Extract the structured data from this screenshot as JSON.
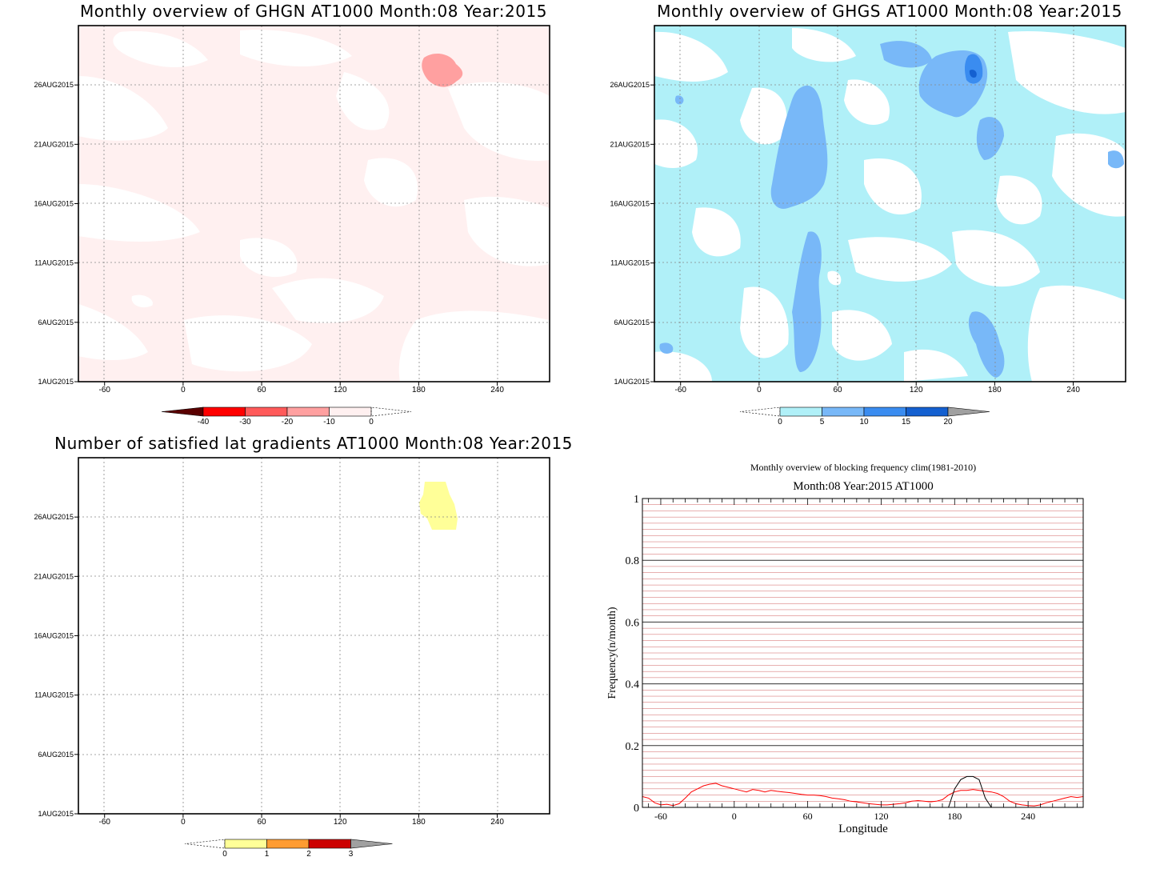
{
  "panels": [
    {
      "id": "ghgn",
      "title": "Monthly overview of GHGN AT1000 Month:08 Year:2015",
      "x_ticks": [
        "-60",
        "0",
        "60",
        "120",
        "180",
        "240"
      ],
      "y_ticks": [
        "1AUG2015",
        "6AUG2015",
        "11AUG2015",
        "16AUG2015",
        "21AUG2015",
        "26AUG2015"
      ],
      "colorbar": {
        "labels": [
          "-40",
          "-30",
          "-20",
          "-10",
          "0"
        ],
        "colors": [
          "#5a0000",
          "#ff0000",
          "#ff5a5a",
          "#ffa0a0",
          "#fff0f0"
        ]
      }
    },
    {
      "id": "ghgs",
      "title": "Monthly overview of GHGS AT1000 Month:08 Year:2015",
      "x_ticks": [
        "-60",
        "0",
        "60",
        "120",
        "180",
        "240"
      ],
      "y_ticks": [
        "1AUG2015",
        "6AUG2015",
        "11AUG2015",
        "16AUG2015",
        "21AUG2015",
        "26AUG2015"
      ],
      "colorbar": {
        "labels": [
          "0",
          "5",
          "10",
          "15",
          "20"
        ],
        "colors": [
          "#b0f0f8",
          "#78b8f8",
          "#3a8cf0",
          "#1460d0",
          "#a0a0a0"
        ]
      }
    },
    {
      "id": "lat",
      "title": "Number of satisfied lat gradients AT1000 Month:08 Year:2015",
      "x_ticks": [
        "-60",
        "0",
        "60",
        "120",
        "180",
        "240"
      ],
      "y_ticks": [
        "1AUG2015",
        "6AUG2015",
        "11AUG2015",
        "16AUG2015",
        "21AUG2015",
        "26AUG2015"
      ],
      "colorbar": {
        "labels": [
          "0",
          "1",
          "2",
          "3"
        ],
        "colors": [
          "#ffff98",
          "#ff9c32",
          "#cc0000",
          "#a0a0a0"
        ]
      }
    }
  ],
  "chart_data": {
    "type": "line",
    "title": "Monthly overview of blocking frequency clim(1981-2010)",
    "subtitle": "Month:08 Year:2015  AT1000",
    "xlabel": "Longitude",
    "ylabel": "Frequency(n/month)",
    "xlim": [
      -75,
      285
    ],
    "ylim": [
      0,
      1
    ],
    "x_ticks": [
      "-60",
      "0",
      "60",
      "120",
      "180",
      "240"
    ],
    "y_ticks": [
      "0",
      "0.2",
      "0.4",
      "0.6",
      "0.8",
      "1"
    ],
    "grid": true,
    "series": [
      {
        "color": "#ff0000",
        "x": [
          -75,
          -70,
          -65,
          -60,
          -55,
          -50,
          -45,
          -40,
          -35,
          -30,
          -25,
          -20,
          -15,
          -10,
          -5,
          0,
          5,
          10,
          15,
          20,
          25,
          30,
          35,
          40,
          45,
          50,
          55,
          60,
          65,
          70,
          75,
          80,
          85,
          90,
          95,
          100,
          105,
          110,
          115,
          120,
          125,
          130,
          135,
          140,
          145,
          150,
          155,
          160,
          165,
          170,
          175,
          180,
          185,
          190,
          195,
          200,
          205,
          210,
          215,
          220,
          225,
          230,
          235,
          240,
          245,
          250,
          255,
          260,
          265,
          270,
          275,
          280,
          285
        ],
        "values": [
          0.035,
          0.03,
          0.015,
          0.008,
          0.01,
          0.006,
          0.012,
          0.03,
          0.05,
          0.06,
          0.07,
          0.075,
          0.078,
          0.07,
          0.065,
          0.06,
          0.055,
          0.05,
          0.058,
          0.055,
          0.05,
          0.055,
          0.052,
          0.05,
          0.048,
          0.045,
          0.042,
          0.04,
          0.04,
          0.038,
          0.035,
          0.03,
          0.028,
          0.025,
          0.02,
          0.018,
          0.015,
          0.012,
          0.01,
          0.008,
          0.008,
          0.01,
          0.012,
          0.015,
          0.02,
          0.022,
          0.02,
          0.018,
          0.02,
          0.025,
          0.04,
          0.05,
          0.055,
          0.055,
          0.058,
          0.055,
          0.052,
          0.05,
          0.045,
          0.035,
          0.02,
          0.012,
          0.008,
          0.006,
          0.005,
          0.008,
          0.015,
          0.02,
          0.025,
          0.03,
          0.035,
          0.032,
          0.035
        ]
      },
      {
        "color": "#000000",
        "x": [
          175,
          180,
          185,
          190,
          195,
          200,
          205,
          210
        ],
        "values": [
          0.0,
          0.06,
          0.09,
          0.1,
          0.1,
          0.09,
          0.03,
          0.0
        ]
      }
    ]
  }
}
